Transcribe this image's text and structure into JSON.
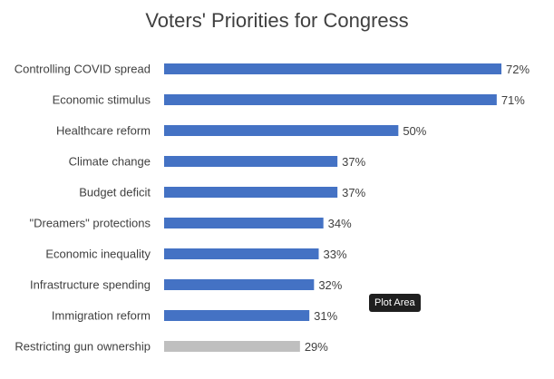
{
  "chart_data": {
    "type": "bar",
    "orientation": "horizontal",
    "title": "Voters' Priorities for Congress",
    "categories": [
      "Controlling COVID spread",
      "Economic stimulus",
      "Healthcare reform",
      "Climate change",
      "Budget deficit",
      "\"Dreamers\" protections",
      "Economic inequality",
      "Infrastructure spending",
      "Immigration reform",
      "Restricting gun ownership"
    ],
    "values": [
      72,
      71,
      50,
      37,
      37,
      34,
      33,
      32,
      31,
      29
    ],
    "value_labels": [
      "72%",
      "71%",
      "50%",
      "37%",
      "37%",
      "34%",
      "33%",
      "32%",
      "31%",
      "29%"
    ],
    "bar_colors": [
      "#4472c4",
      "#4472c4",
      "#4472c4",
      "#4472c4",
      "#4472c4",
      "#4472c4",
      "#4472c4",
      "#4472c4",
      "#4472c4",
      "#bfbfbf"
    ],
    "xlim": [
      0,
      72
    ],
    "xlabel": "",
    "ylabel": "",
    "grid": false,
    "legend": "none"
  },
  "tooltip": {
    "text": "Plot Area"
  }
}
